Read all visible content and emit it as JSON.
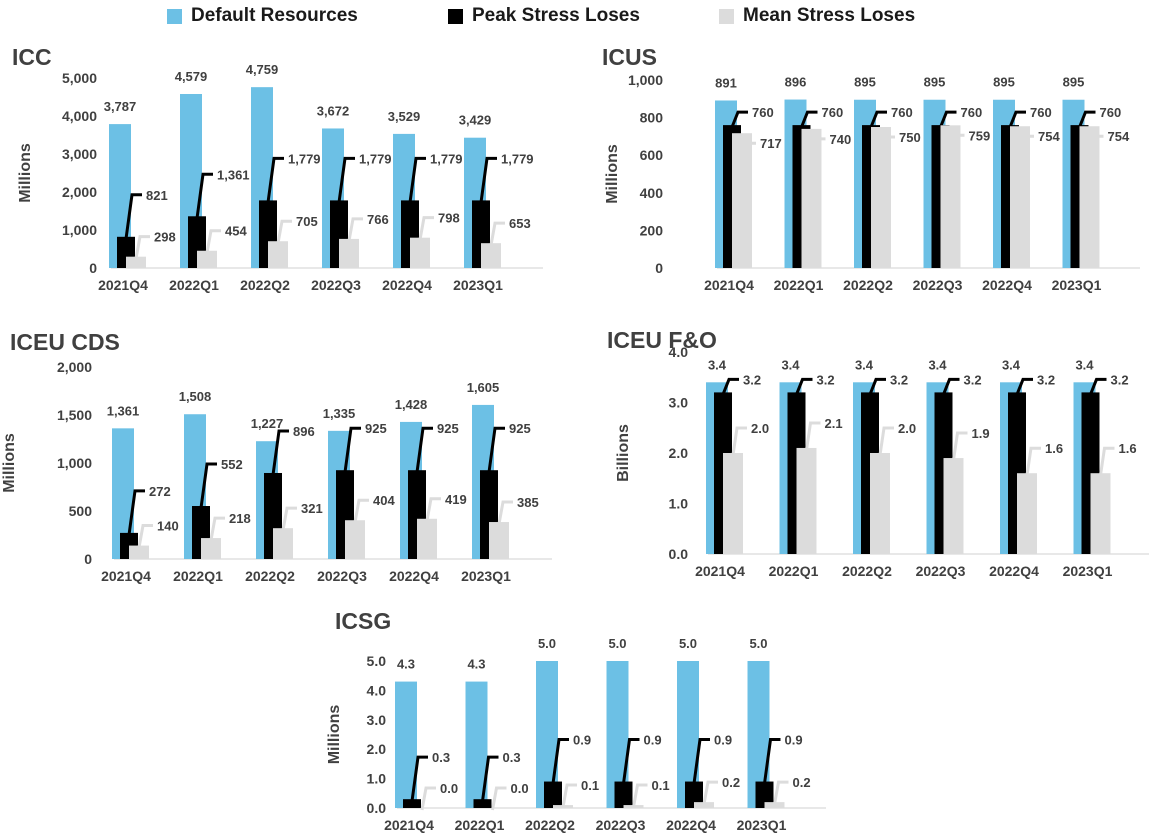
{
  "legend": {
    "position": "top",
    "items": [
      {
        "label": "Default Resources",
        "color": "#6cc0e5"
      },
      {
        "label": "Peak Stress Loses",
        "color": "#000000"
      },
      {
        "label": "Mean Stress Loses",
        "color": "#dcdcdc"
      }
    ]
  },
  "chart_data": [
    {
      "type": "bar",
      "title": "ICC",
      "ylabel": "Millions",
      "categories": [
        "2021Q4",
        "2022Q1",
        "2022Q2",
        "2022Q3",
        "2022Q4",
        "2023Q1"
      ],
      "ylim": [
        0,
        5000
      ],
      "yticks": [
        0,
        1000,
        2000,
        3000,
        4000,
        5000
      ],
      "ytick_labels": [
        "0",
        "1,000",
        "2,000",
        "3,000",
        "4,000",
        "5,000"
      ],
      "series": [
        {
          "name": "Default Resources",
          "values": [
            3787,
            4579,
            4759,
            3672,
            3529,
            3429
          ],
          "labels": [
            "3,787",
            "4,579",
            "4,759",
            "3,672",
            "3,529",
            "3,429"
          ]
        },
        {
          "name": "Peak Stress Loses",
          "values": [
            821,
            1361,
            1779,
            1779,
            1779,
            1779
          ],
          "labels": [
            "821",
            "1,361",
            "1,779",
            "1,779",
            "1,779",
            "1,779"
          ]
        },
        {
          "name": "Mean Stress Loses",
          "values": [
            298,
            454,
            705,
            766,
            798,
            653
          ],
          "labels": [
            "298",
            "454",
            "705",
            "766",
            "798",
            "653"
          ]
        }
      ]
    },
    {
      "type": "bar",
      "title": "ICUS",
      "ylabel": "Millions",
      "categories": [
        "2021Q4",
        "2022Q1",
        "2022Q2",
        "2022Q3",
        "2022Q4",
        "2023Q1"
      ],
      "ylim": [
        0,
        1000
      ],
      "yticks": [
        0,
        200,
        400,
        600,
        800,
        1000
      ],
      "ytick_labels": [
        "0",
        "200",
        "400",
        "600",
        "800",
        "1,000"
      ],
      "series": [
        {
          "name": "Default Resources",
          "values": [
            891,
            896,
            895,
            895,
            895,
            895
          ],
          "labels": [
            "891",
            "896",
            "895",
            "895",
            "895",
            "895"
          ]
        },
        {
          "name": "Peak Stress Loses",
          "values": [
            760,
            760,
            760,
            760,
            760,
            760
          ],
          "labels": [
            "760",
            "760",
            "760",
            "760",
            "760",
            "760"
          ]
        },
        {
          "name": "Mean Stress Loses",
          "values": [
            717,
            740,
            750,
            759,
            754,
            754
          ],
          "labels": [
            "717",
            "740",
            "750",
            "759",
            "754",
            "754"
          ]
        }
      ]
    },
    {
      "type": "bar",
      "title": "ICEU CDS",
      "ylabel": "Millions",
      "categories": [
        "2021Q4",
        "2022Q1",
        "2022Q2",
        "2022Q3",
        "2022Q4",
        "2023Q1"
      ],
      "ylim": [
        0,
        2000
      ],
      "yticks": [
        0,
        500,
        1000,
        1500,
        2000
      ],
      "ytick_labels": [
        "0",
        "500",
        "1,000",
        "1,500",
        "2,000"
      ],
      "series": [
        {
          "name": "Default Resources",
          "values": [
            1361,
            1508,
            1227,
            1335,
            1428,
            1605
          ],
          "labels": [
            "1,361",
            "1,508",
            "1,227",
            "1,335",
            "1,428",
            "1,605"
          ]
        },
        {
          "name": "Peak Stress Loses",
          "values": [
            272,
            552,
            896,
            925,
            925,
            925
          ],
          "labels": [
            "272",
            "552",
            "896",
            "925",
            "925",
            "925"
          ]
        },
        {
          "name": "Mean Stress Loses",
          "values": [
            140,
            218,
            321,
            404,
            419,
            385
          ],
          "labels": [
            "140",
            "218",
            "321",
            "404",
            "419",
            "385"
          ]
        }
      ]
    },
    {
      "type": "bar",
      "title": "ICEU F&O",
      "ylabel": "Billions",
      "categories": [
        "2021Q4",
        "2022Q1",
        "2022Q2",
        "2022Q3",
        "2022Q4",
        "2023Q1"
      ],
      "ylim": [
        0,
        4.0
      ],
      "yticks": [
        0,
        1,
        2,
        3,
        4
      ],
      "ytick_labels": [
        "0.0",
        "1.0",
        "2.0",
        "3.0",
        "4.0"
      ],
      "series": [
        {
          "name": "Default Resources",
          "values": [
            3.4,
            3.4,
            3.4,
            3.4,
            3.4,
            3.4
          ],
          "labels": [
            "3.4",
            "3.4",
            "3.4",
            "3.4",
            "3.4",
            "3.4"
          ]
        },
        {
          "name": "Peak Stress Loses",
          "values": [
            3.2,
            3.2,
            3.2,
            3.2,
            3.2,
            3.2
          ],
          "labels": [
            "3.2",
            "3.2",
            "3.2",
            "3.2",
            "3.2",
            "3.2"
          ]
        },
        {
          "name": "Mean Stress Loses",
          "values": [
            2.0,
            2.1,
            2.0,
            1.9,
            1.6,
            1.6
          ],
          "labels": [
            "2.0",
            "2.1",
            "2.0",
            "1.9",
            "1.6",
            "1.6"
          ]
        }
      ]
    },
    {
      "type": "bar",
      "title": "ICSG",
      "ylabel": "Millions",
      "categories": [
        "2021Q4",
        "2022Q1",
        "2022Q2",
        "2022Q3",
        "2022Q4",
        "2023Q1"
      ],
      "ylim": [
        0,
        5.0
      ],
      "yticks": [
        0,
        1,
        2,
        3,
        4,
        5
      ],
      "ytick_labels": [
        "0.0",
        "1.0",
        "2.0",
        "3.0",
        "4.0",
        "5.0"
      ],
      "series": [
        {
          "name": "Default Resources",
          "values": [
            4.3,
            4.3,
            5.0,
            5.0,
            5.0,
            5.0
          ],
          "labels": [
            "4.3",
            "4.3",
            "5.0",
            "5.0",
            "5.0",
            "5.0"
          ]
        },
        {
          "name": "Peak Stress Loses",
          "values": [
            0.3,
            0.3,
            0.9,
            0.9,
            0.9,
            0.9
          ],
          "labels": [
            "0.3",
            "0.3",
            "0.9",
            "0.9",
            "0.9",
            "0.9"
          ]
        },
        {
          "name": "Mean Stress Loses",
          "values": [
            0.0,
            0.0,
            0.1,
            0.1,
            0.2,
            0.2
          ],
          "labels": [
            "0.0",
            "0.0",
            "0.1",
            "0.1",
            "0.2",
            "0.2"
          ]
        }
      ]
    }
  ]
}
